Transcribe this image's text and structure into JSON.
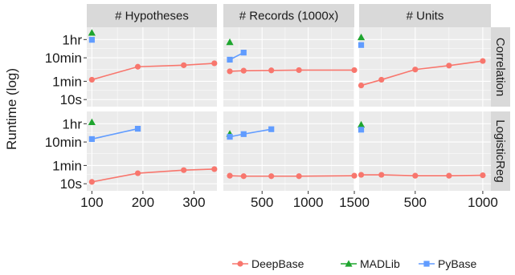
{
  "chart_data": {
    "type": "line",
    "ylabel": "Runtime (log)",
    "y_scale": "log",
    "y_unit": "seconds",
    "y_ticks": [
      {
        "value": 10,
        "label": "10s"
      },
      {
        "value": 60,
        "label": "1min"
      },
      {
        "value": 600,
        "label": "10min"
      },
      {
        "value": 3600,
        "label": "1hr"
      }
    ],
    "ylim": [
      5,
      12000
    ],
    "grid": true,
    "legend": {
      "position": "bottom-right",
      "entries": [
        {
          "name": "DeepBase",
          "color": "#f8766d",
          "shape": "circle"
        },
        {
          "name": "MADLib",
          "color": "#1ea52e",
          "shape": "triangle"
        },
        {
          "name": "PyBase",
          "color": "#619cff",
          "shape": "square"
        }
      ]
    },
    "columns": [
      {
        "label": "# Hypotheses",
        "xlim": [
          90,
          345
        ],
        "x_ticks": [
          100,
          200,
          300
        ]
      },
      {
        "label": "# Records (1000x)",
        "xlim": [
          80,
          1500
        ],
        "x_ticks": [
          500,
          1000,
          1500
        ]
      },
      {
        "label": "# Units",
        "xlim": [
          85,
          1060
        ],
        "x_ticks": [
          500,
          1000
        ]
      }
    ],
    "rows": [
      {
        "label": "Correlation"
      },
      {
        "label": "LogisticReg"
      }
    ],
    "panels": [
      {
        "col": 0,
        "row": 0,
        "series": [
          {
            "name": "DeepBase",
            "x": [
              100,
              190,
              280,
              340
            ],
            "y": [
              70,
              250,
              290,
              350
            ]
          },
          {
            "name": "MADLib",
            "x": [
              100
            ],
            "y": [
              7000
            ]
          },
          {
            "name": "PyBase",
            "x": [
              100
            ],
            "y": [
              3500
            ]
          }
        ]
      },
      {
        "col": 1,
        "row": 0,
        "series": [
          {
            "name": "DeepBase",
            "x": [
              150,
              300,
              600,
              900,
              1500
            ],
            "y": [
              160,
              170,
              175,
              180,
              180
            ]
          },
          {
            "name": "MADLib",
            "x": [
              150
            ],
            "y": [
              2800
            ]
          },
          {
            "name": "PyBase",
            "x": [
              150,
              300
            ],
            "y": [
              500,
              1000
            ]
          }
        ]
      },
      {
        "col": 2,
        "row": 0,
        "series": [
          {
            "name": "DeepBase",
            "x": [
              100,
              250,
              500,
              750,
              1000
            ],
            "y": [
              40,
              70,
              190,
              280,
              440
            ]
          },
          {
            "name": "MADLib",
            "x": [
              100
            ],
            "y": [
              4500
            ]
          },
          {
            "name": "PyBase",
            "x": [
              100
            ],
            "y": [
              2100
            ]
          }
        ]
      },
      {
        "col": 0,
        "row": 1,
        "series": [
          {
            "name": "DeepBase",
            "x": [
              100,
              190,
              280,
              340
            ],
            "y": [
              12,
              28,
              38,
              42
            ]
          },
          {
            "name": "MADLib",
            "x": [
              100
            ],
            "y": [
              4200
            ]
          },
          {
            "name": "PyBase",
            "x": [
              100,
              190
            ],
            "y": [
              800,
              2200
            ]
          }
        ]
      },
      {
        "col": 1,
        "row": 1,
        "series": [
          {
            "name": "DeepBase",
            "x": [
              150,
              300,
              600,
              900,
              1500
            ],
            "y": [
              22,
              21,
              21,
              21,
              22
            ]
          },
          {
            "name": "MADLib",
            "x": [
              150
            ],
            "y": [
              1350
            ]
          },
          {
            "name": "PyBase",
            "x": [
              150,
              300,
              600
            ],
            "y": [
              1000,
              1300,
              2100
            ]
          }
        ]
      },
      {
        "col": 2,
        "row": 1,
        "series": [
          {
            "name": "DeepBase",
            "x": [
              100,
              250,
              500,
              750,
              1000
            ],
            "y": [
              24,
              24,
              22,
              22,
              23
            ]
          },
          {
            "name": "MADLib",
            "x": [
              100
            ],
            "y": [
              3300
            ]
          },
          {
            "name": "PyBase",
            "x": [
              100
            ],
            "y": [
              2000
            ]
          }
        ]
      }
    ]
  }
}
